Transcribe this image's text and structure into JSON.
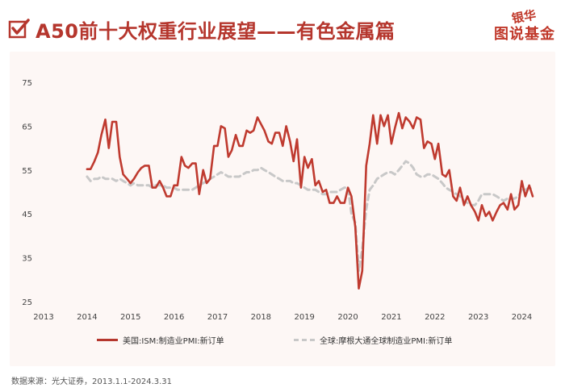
{
  "header": {
    "title": "A50前十大权重行业展望——有色金属篇",
    "logo_top": "银华",
    "logo_bottom": "图说基金"
  },
  "colors": {
    "accent": "#b5362d",
    "series_ism": "#bf3a2f",
    "series_global": "#c8c8c8",
    "panel_bg": "#fdf7f5"
  },
  "legend": {
    "ism": "美国:ISM:制造业PMI:新订单",
    "global": "全球:摩根大通全球制造业PMI:新订单"
  },
  "source": "数据来源：光大证券，2013.1.1-2024.3.31",
  "chart_data": {
    "type": "line",
    "title": "",
    "xlabel": "",
    "ylabel": "",
    "xlim": [
      2013,
      2024.25
    ],
    "ylim": [
      25,
      75
    ],
    "x_ticks": [
      2013,
      2014,
      2015,
      2016,
      2017,
      2018,
      2019,
      2020,
      2021,
      2022,
      2023,
      2024
    ],
    "y_ticks": [
      25,
      35,
      45,
      55,
      65,
      75
    ],
    "grid": false,
    "legend_position": "bottom",
    "series": [
      {
        "name": "美国:ISM:制造业PMI:新订单",
        "style": "solid",
        "points": [
          [
            2014.0,
            55.2
          ],
          [
            2014.08,
            55.2
          ],
          [
            2014.17,
            57.0
          ],
          [
            2014.25,
            59.0
          ],
          [
            2014.33,
            63.0
          ],
          [
            2014.42,
            66.5
          ],
          [
            2014.5,
            60.0
          ],
          [
            2014.58,
            66.0
          ],
          [
            2014.67,
            66.0
          ],
          [
            2014.75,
            58.0
          ],
          [
            2014.83,
            54.0
          ],
          [
            2014.92,
            53.0
          ],
          [
            2015.0,
            52.0
          ],
          [
            2015.08,
            53.0
          ],
          [
            2015.17,
            54.5
          ],
          [
            2015.25,
            55.5
          ],
          [
            2015.33,
            56.0
          ],
          [
            2015.42,
            56.0
          ],
          [
            2015.5,
            51.0
          ],
          [
            2015.58,
            51.0
          ],
          [
            2015.67,
            52.5
          ],
          [
            2015.75,
            51.0
          ],
          [
            2015.83,
            49.0
          ],
          [
            2015.92,
            49.0
          ],
          [
            2016.0,
            51.5
          ],
          [
            2016.08,
            51.5
          ],
          [
            2016.17,
            58.0
          ],
          [
            2016.25,
            56.0
          ],
          [
            2016.33,
            55.5
          ],
          [
            2016.42,
            56.5
          ],
          [
            2016.5,
            56.5
          ],
          [
            2016.58,
            49.5
          ],
          [
            2016.67,
            55.0
          ],
          [
            2016.75,
            52.0
          ],
          [
            2016.83,
            53.0
          ],
          [
            2016.92,
            60.5
          ],
          [
            2017.0,
            60.5
          ],
          [
            2017.08,
            65.0
          ],
          [
            2017.17,
            64.5
          ],
          [
            2017.25,
            58.0
          ],
          [
            2017.33,
            59.5
          ],
          [
            2017.42,
            63.0
          ],
          [
            2017.5,
            60.5
          ],
          [
            2017.58,
            60.5
          ],
          [
            2017.67,
            64.0
          ],
          [
            2017.75,
            63.5
          ],
          [
            2017.83,
            64.0
          ],
          [
            2017.92,
            67.0
          ],
          [
            2018.0,
            65.5
          ],
          [
            2018.08,
            64.0
          ],
          [
            2018.17,
            61.5
          ],
          [
            2018.25,
            61.0
          ],
          [
            2018.33,
            63.5
          ],
          [
            2018.42,
            63.5
          ],
          [
            2018.5,
            60.5
          ],
          [
            2018.58,
            65.0
          ],
          [
            2018.67,
            61.5
          ],
          [
            2018.75,
            57.0
          ],
          [
            2018.83,
            62.0
          ],
          [
            2018.92,
            51.0
          ],
          [
            2019.0,
            58.0
          ],
          [
            2019.08,
            55.5
          ],
          [
            2019.17,
            57.5
          ],
          [
            2019.25,
            51.5
          ],
          [
            2019.33,
            52.5
          ],
          [
            2019.42,
            50.0
          ],
          [
            2019.5,
            50.5
          ],
          [
            2019.58,
            47.5
          ],
          [
            2019.67,
            47.5
          ],
          [
            2019.75,
            49.0
          ],
          [
            2019.83,
            47.5
          ],
          [
            2019.92,
            47.5
          ],
          [
            2020.0,
            51.0
          ],
          [
            2020.08,
            49.0
          ],
          [
            2020.17,
            42.0
          ],
          [
            2020.25,
            28.0
          ],
          [
            2020.33,
            32.0
          ],
          [
            2020.42,
            56.0
          ],
          [
            2020.5,
            61.0
          ],
          [
            2020.58,
            67.5
          ],
          [
            2020.67,
            61.0
          ],
          [
            2020.75,
            67.5
          ],
          [
            2020.83,
            65.0
          ],
          [
            2020.92,
            67.5
          ],
          [
            2021.0,
            61.0
          ],
          [
            2021.08,
            64.5
          ],
          [
            2021.17,
            68.0
          ],
          [
            2021.25,
            64.5
          ],
          [
            2021.33,
            67.0
          ],
          [
            2021.42,
            66.0
          ],
          [
            2021.5,
            64.5
          ],
          [
            2021.58,
            67.0
          ],
          [
            2021.67,
            66.5
          ],
          [
            2021.75,
            60.0
          ],
          [
            2021.83,
            61.5
          ],
          [
            2021.92,
            61.0
          ],
          [
            2022.0,
            57.5
          ],
          [
            2022.08,
            61.0
          ],
          [
            2022.17,
            54.0
          ],
          [
            2022.25,
            53.5
          ],
          [
            2022.33,
            55.0
          ],
          [
            2022.42,
            49.0
          ],
          [
            2022.5,
            48.0
          ],
          [
            2022.58,
            51.0
          ],
          [
            2022.67,
            47.0
          ],
          [
            2022.75,
            49.0
          ],
          [
            2022.83,
            47.0
          ],
          [
            2022.92,
            45.5
          ],
          [
            2023.0,
            43.5
          ],
          [
            2023.08,
            47.0
          ],
          [
            2023.17,
            44.5
          ],
          [
            2023.25,
            45.5
          ],
          [
            2023.33,
            43.5
          ],
          [
            2023.42,
            45.5
          ],
          [
            2023.5,
            47.0
          ],
          [
            2023.58,
            47.5
          ],
          [
            2023.67,
            46.0
          ],
          [
            2023.75,
            49.5
          ],
          [
            2023.83,
            46.0
          ],
          [
            2023.92,
            47.0
          ],
          [
            2024.0,
            52.5
          ],
          [
            2024.08,
            49.0
          ],
          [
            2024.17,
            51.5
          ],
          [
            2024.25,
            49.0
          ]
        ]
      },
      {
        "name": "全球:摩根大通全球制造业PMI:新订单",
        "style": "dashed",
        "points": [
          [
            2014.0,
            53.5
          ],
          [
            2014.08,
            52.5
          ],
          [
            2014.17,
            53.0
          ],
          [
            2014.25,
            53.0
          ],
          [
            2014.33,
            53.5
          ],
          [
            2014.42,
            53.0
          ],
          [
            2014.5,
            53.0
          ],
          [
            2014.58,
            53.0
          ],
          [
            2014.67,
            52.5
          ],
          [
            2014.75,
            53.0
          ],
          [
            2014.83,
            52.5
          ],
          [
            2014.92,
            52.0
          ],
          [
            2015.0,
            51.5
          ],
          [
            2015.08,
            52.0
          ],
          [
            2015.17,
            51.5
          ],
          [
            2015.25,
            51.5
          ],
          [
            2015.33,
            51.5
          ],
          [
            2015.42,
            51.5
          ],
          [
            2015.5,
            51.0
          ],
          [
            2015.58,
            51.5
          ],
          [
            2015.67,
            51.5
          ],
          [
            2015.75,
            51.5
          ],
          [
            2015.83,
            51.0
          ],
          [
            2015.92,
            51.0
          ],
          [
            2016.0,
            51.0
          ],
          [
            2016.08,
            50.5
          ],
          [
            2016.17,
            50.5
          ],
          [
            2016.25,
            50.5
          ],
          [
            2016.33,
            50.5
          ],
          [
            2016.42,
            50.5
          ],
          [
            2016.5,
            51.0
          ],
          [
            2016.58,
            51.5
          ],
          [
            2016.67,
            52.0
          ],
          [
            2016.75,
            52.5
          ],
          [
            2016.83,
            53.0
          ],
          [
            2016.92,
            53.5
          ],
          [
            2017.0,
            54.0
          ],
          [
            2017.08,
            54.5
          ],
          [
            2017.17,
            54.0
          ],
          [
            2017.25,
            53.5
          ],
          [
            2017.33,
            53.5
          ],
          [
            2017.42,
            53.5
          ],
          [
            2017.5,
            53.5
          ],
          [
            2017.58,
            54.0
          ],
          [
            2017.67,
            54.5
          ],
          [
            2017.75,
            54.5
          ],
          [
            2017.83,
            55.0
          ],
          [
            2017.92,
            55.0
          ],
          [
            2018.0,
            55.5
          ],
          [
            2018.08,
            55.0
          ],
          [
            2018.17,
            54.5
          ],
          [
            2018.25,
            54.0
          ],
          [
            2018.33,
            53.5
          ],
          [
            2018.42,
            53.0
          ],
          [
            2018.5,
            52.5
          ],
          [
            2018.58,
            52.5
          ],
          [
            2018.67,
            52.5
          ],
          [
            2018.75,
            52.0
          ],
          [
            2018.83,
            52.0
          ],
          [
            2018.92,
            51.5
          ],
          [
            2019.0,
            51.0
          ],
          [
            2019.08,
            50.5
          ],
          [
            2019.17,
            50.5
          ],
          [
            2019.25,
            50.5
          ],
          [
            2019.33,
            50.0
          ],
          [
            2019.42,
            49.5
          ],
          [
            2019.5,
            49.5
          ],
          [
            2019.58,
            50.0
          ],
          [
            2019.67,
            50.0
          ],
          [
            2019.75,
            50.0
          ],
          [
            2019.83,
            50.5
          ],
          [
            2019.92,
            51.0
          ],
          [
            2020.0,
            51.0
          ],
          [
            2020.08,
            45.0
          ],
          [
            2020.17,
            43.0
          ],
          [
            2020.25,
            32.0
          ],
          [
            2020.33,
            37.0
          ],
          [
            2020.42,
            46.0
          ],
          [
            2020.5,
            50.5
          ],
          [
            2020.58,
            51.5
          ],
          [
            2020.67,
            53.0
          ],
          [
            2020.75,
            53.5
          ],
          [
            2020.83,
            54.0
          ],
          [
            2020.92,
            54.5
          ],
          [
            2021.0,
            54.5
          ],
          [
            2021.08,
            54.0
          ],
          [
            2021.17,
            55.0
          ],
          [
            2021.25,
            56.0
          ],
          [
            2021.33,
            57.0
          ],
          [
            2021.42,
            56.5
          ],
          [
            2021.5,
            55.5
          ],
          [
            2021.58,
            54.0
          ],
          [
            2021.67,
            53.5
          ],
          [
            2021.75,
            53.5
          ],
          [
            2021.83,
            54.0
          ],
          [
            2021.92,
            54.0
          ],
          [
            2022.0,
            53.5
          ],
          [
            2022.08,
            53.0
          ],
          [
            2022.17,
            52.0
          ],
          [
            2022.25,
            51.0
          ],
          [
            2022.33,
            50.5
          ],
          [
            2022.42,
            50.0
          ],
          [
            2022.5,
            49.5
          ],
          [
            2022.58,
            49.0
          ],
          [
            2022.67,
            48.0
          ],
          [
            2022.75,
            47.5
          ],
          [
            2022.83,
            47.0
          ],
          [
            2022.92,
            47.0
          ],
          [
            2023.0,
            48.0
          ],
          [
            2023.08,
            49.5
          ],
          [
            2023.17,
            49.5
          ],
          [
            2023.25,
            49.5
          ],
          [
            2023.33,
            49.5
          ],
          [
            2023.42,
            49.0
          ],
          [
            2023.5,
            48.5
          ],
          [
            2023.58,
            48.0
          ],
          [
            2023.67,
            48.5
          ],
          [
            2023.75,
            48.5
          ],
          [
            2023.83,
            48.5
          ],
          [
            2023.92,
            49.0
          ],
          [
            2024.0,
            50.5
          ],
          [
            2024.08,
            50.5
          ],
          [
            2024.17,
            51.0
          ],
          [
            2024.25,
            50.5
          ]
        ]
      }
    ]
  }
}
